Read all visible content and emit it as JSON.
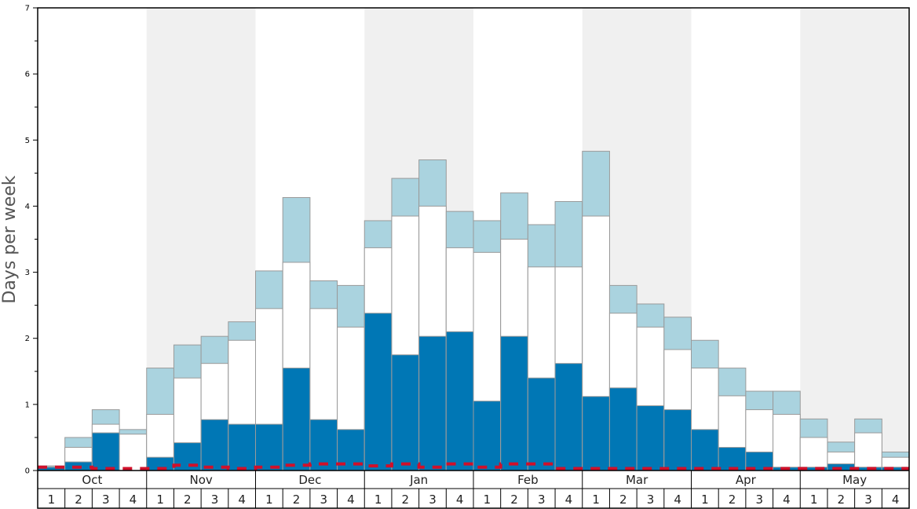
{
  "chart_data": {
    "type": "bar",
    "ylabel": "Days per week",
    "ylim": [
      0,
      7
    ],
    "yticks": [
      "0",
      "1",
      "2",
      "3",
      "4",
      "5",
      "6",
      "7"
    ],
    "months": [
      "Oct",
      "Nov",
      "Dec",
      "Jan",
      "Feb",
      "Mar",
      "Apr",
      "May"
    ],
    "week_labels": [
      "1",
      "2",
      "3",
      "4"
    ],
    "colors": {
      "dark": "#0077b5",
      "white": "#ffffff",
      "light": "#aad3df",
      "dashed": "#d0102a",
      "band": "#f0f0f0"
    },
    "series": [
      {
        "values": [
          0.05,
          0.13,
          0.57,
          0.0,
          0.2,
          0.42,
          0.77,
          0.7,
          0.7,
          1.55,
          0.77,
          0.62,
          2.38,
          1.75,
          2.03,
          2.1,
          1.05,
          2.03,
          1.4,
          1.62,
          1.12,
          1.25,
          0.98,
          0.92,
          0.62,
          0.35,
          0.28,
          0.05,
          0.05,
          0.1,
          0.05,
          0.05
        ]
      },
      {
        "values": [
          0.05,
          0.35,
          0.7,
          0.55,
          0.85,
          1.4,
          1.62,
          1.97,
          2.45,
          3.15,
          2.45,
          2.17,
          3.37,
          3.85,
          4.0,
          3.37,
          3.3,
          3.5,
          3.08,
          3.08,
          3.85,
          2.38,
          2.17,
          1.83,
          1.55,
          1.13,
          0.92,
          0.85,
          0.5,
          0.28,
          0.57,
          0.2
        ]
      },
      {
        "values": [
          0.07,
          0.5,
          0.92,
          0.62,
          1.55,
          1.9,
          2.03,
          2.25,
          3.02,
          4.13,
          2.87,
          2.8,
          3.78,
          4.42,
          4.7,
          3.92,
          3.78,
          4.2,
          3.72,
          4.07,
          4.83,
          2.8,
          2.52,
          2.32,
          1.97,
          1.55,
          1.2,
          1.2,
          0.78,
          0.43,
          0.78,
          0.28
        ]
      },
      {
        "values": [
          0.05,
          0.05,
          0.03,
          0.03,
          0.03,
          0.08,
          0.05,
          0.03,
          0.05,
          0.08,
          0.1,
          0.1,
          0.07,
          0.1,
          0.05,
          0.1,
          0.05,
          0.1,
          0.1,
          0.03,
          0.03,
          0.03,
          0.03,
          0.03,
          0.03,
          0.03,
          0.03,
          0.03,
          0.03,
          0.03,
          0.03,
          0.03
        ]
      }
    ]
  }
}
